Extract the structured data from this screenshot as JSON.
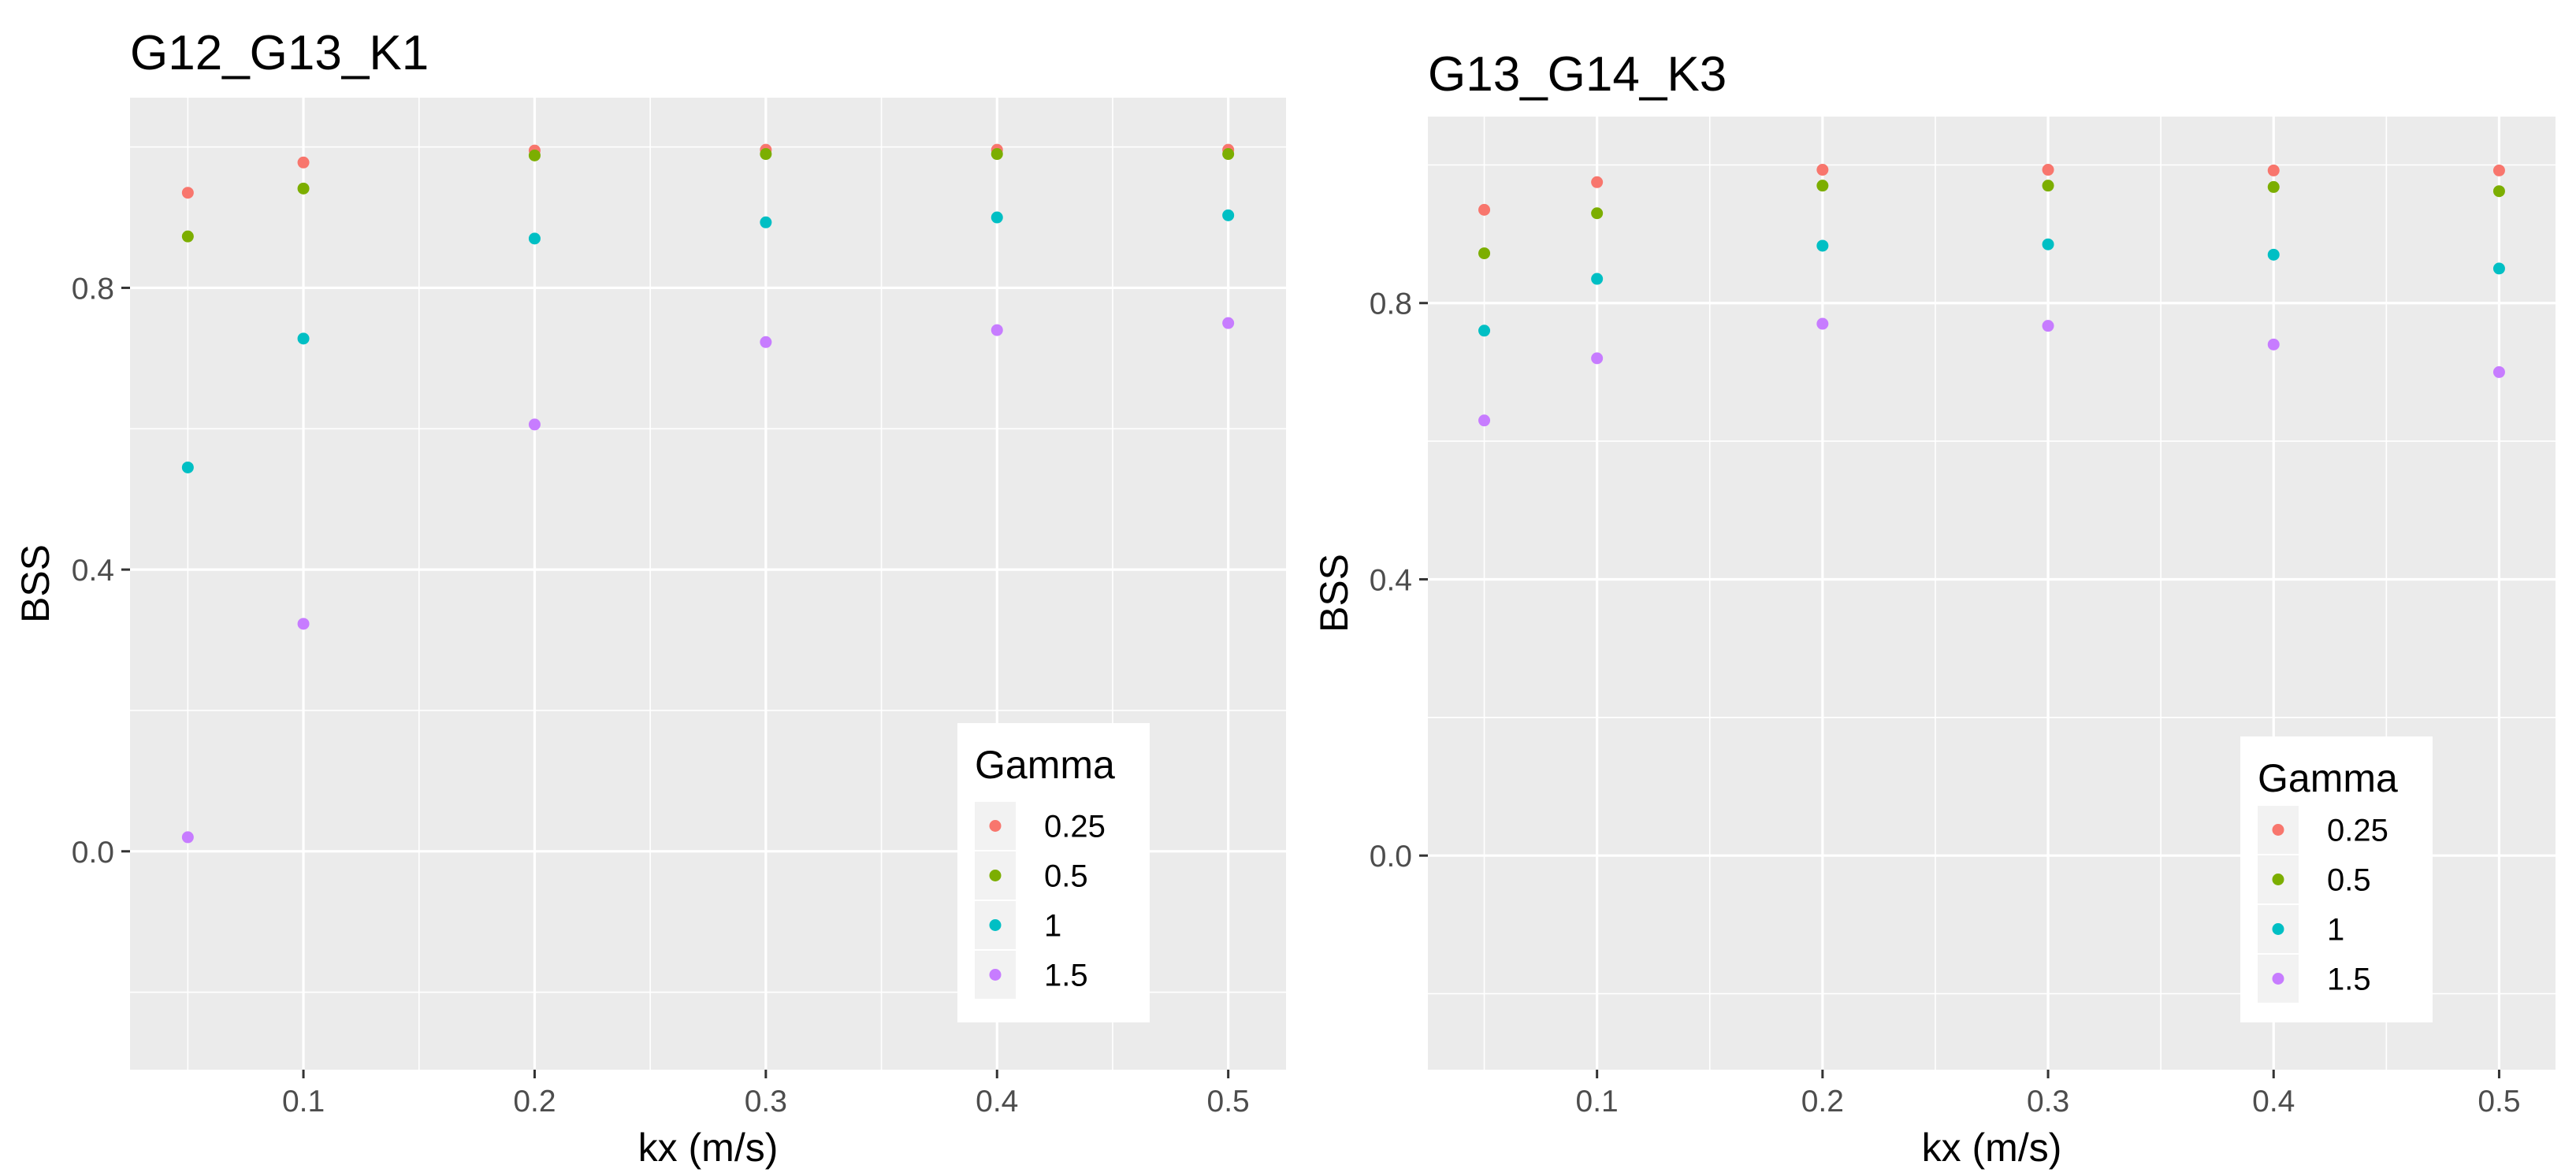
{
  "chart_data": [
    {
      "type": "scatter",
      "title": "G12_G13_K1",
      "xlabel": "kx (m/s)",
      "ylabel": "BSS",
      "xlim": [
        0.025,
        0.525
      ],
      "ylim": [
        -0.31,
        1.07
      ],
      "x_ticks": [
        0.1,
        0.2,
        0.3,
        0.4,
        0.5
      ],
      "x_tick_labels": [
        "0.1",
        "0.2",
        "0.3",
        "0.4",
        "0.5"
      ],
      "y_ticks": [
        0.0,
        0.4,
        0.8
      ],
      "y_tick_labels": [
        "0.0",
        "0.4",
        "0.8"
      ],
      "legend_title": "Gamma",
      "legend_position": "bottom-right",
      "x": [
        0.05,
        0.1,
        0.2,
        0.3,
        0.4,
        0.5
      ],
      "series": [
        {
          "name": "0.25",
          "color": "#F8766D",
          "values": [
            0.935,
            0.978,
            0.995,
            0.996,
            0.996,
            0.996
          ]
        },
        {
          "name": "0.5",
          "color": "#7CAE00",
          "values": [
            0.873,
            0.941,
            0.988,
            0.99,
            0.99,
            0.99
          ]
        },
        {
          "name": "1",
          "color": "#00BFC4",
          "values": [
            0.545,
            0.728,
            0.87,
            0.893,
            0.9,
            0.903
          ]
        },
        {
          "name": "1.5",
          "color": "#C77CFF",
          "values": [
            0.02,
            0.323,
            0.606,
            0.723,
            0.74,
            0.75
          ]
        }
      ]
    },
    {
      "type": "scatter",
      "title": "G13_G14_K3",
      "xlabel": "kx (m/s)",
      "ylabel": "BSS",
      "xlim": [
        0.025,
        0.525
      ],
      "ylim": [
        -0.31,
        1.07
      ],
      "x_ticks": [
        0.1,
        0.2,
        0.3,
        0.4,
        0.5
      ],
      "x_tick_labels": [
        "0.1",
        "0.2",
        "0.3",
        "0.4",
        "0.5"
      ],
      "y_ticks": [
        0.0,
        0.4,
        0.8
      ],
      "y_tick_labels": [
        "0.0",
        "0.4",
        "0.8"
      ],
      "legend_title": "Gamma",
      "legend_position": "bottom-right",
      "x": [
        0.05,
        0.1,
        0.2,
        0.3,
        0.4,
        0.5
      ],
      "series": [
        {
          "name": "0.25",
          "color": "#F8766D",
          "values": [
            0.935,
            0.975,
            0.993,
            0.993,
            0.992,
            0.992
          ]
        },
        {
          "name": "0.5",
          "color": "#7CAE00",
          "values": [
            0.872,
            0.93,
            0.97,
            0.97,
            0.968,
            0.962
          ]
        },
        {
          "name": "1",
          "color": "#00BFC4",
          "values": [
            0.76,
            0.835,
            0.883,
            0.885,
            0.87,
            0.85
          ]
        },
        {
          "name": "1.5",
          "color": "#C77CFF",
          "values": [
            0.63,
            0.72,
            0.77,
            0.767,
            0.74,
            0.7
          ]
        }
      ]
    }
  ]
}
